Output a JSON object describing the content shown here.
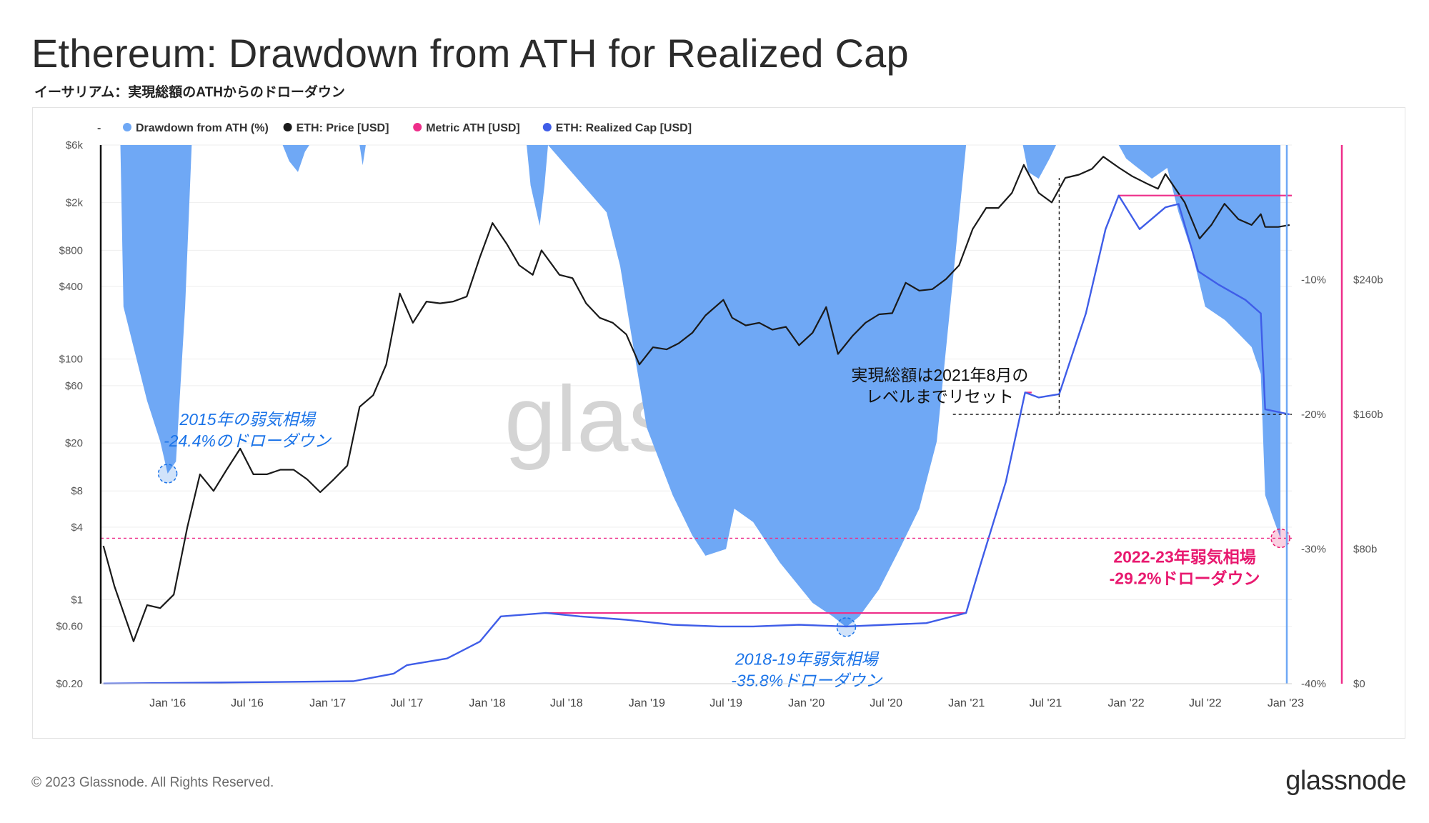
{
  "page": {
    "title": "Ethereum: Drawdown from ATH for Realized Cap",
    "subtitle": "イーサリアム：実現総額のATHからのドローダウン",
    "footer": "© 2023 Glassnode. All Rights Reserved.",
    "brand": "glassnode",
    "watermark": "glassnode"
  },
  "colors": {
    "drawdown": "#6fa8f5",
    "price": "#1a1a1a",
    "metric_ath": "#ee2e8a",
    "realized_cap": "#3f5de8",
    "annotation_blue": "#1a73e8",
    "annotation_pink": "#e8196f",
    "grid": "#eeeeee"
  },
  "chart_data": {
    "type": "area",
    "legend_position": "top-left",
    "legend": [
      {
        "label": "-",
        "color": "#555555",
        "marker": "dash"
      },
      {
        "label": "Drawdown from ATH (%)",
        "color": "#6fa8f5",
        "marker": "dot"
      },
      {
        "label": "ETH: Price [USD]",
        "color": "#1a1a1a",
        "marker": "dot"
      },
      {
        "label": "Metric ATH [USD]",
        "color": "#ee2e8a",
        "marker": "dot"
      },
      {
        "label": "ETH: Realized Cap [USD]",
        "color": "#3f5de8",
        "marker": "dot"
      }
    ],
    "x_axis": {
      "start": "2015-08-01",
      "end": "2023-01-15",
      "ticks": [
        {
          "date": "2016-01-01",
          "label": "Jan '16"
        },
        {
          "date": "2016-07-01",
          "label": "Jul '16"
        },
        {
          "date": "2017-01-01",
          "label": "Jan '17"
        },
        {
          "date": "2017-07-01",
          "label": "Jul '17"
        },
        {
          "date": "2018-01-01",
          "label": "Jan '18"
        },
        {
          "date": "2018-07-01",
          "label": "Jul '18"
        },
        {
          "date": "2019-01-01",
          "label": "Jan '19"
        },
        {
          "date": "2019-07-01",
          "label": "Jul '19"
        },
        {
          "date": "2020-01-01",
          "label": "Jan '20"
        },
        {
          "date": "2020-07-01",
          "label": "Jul '20"
        },
        {
          "date": "2021-01-01",
          "label": "Jan '21"
        },
        {
          "date": "2021-07-01",
          "label": "Jul '21"
        },
        {
          "date": "2022-01-01",
          "label": "Jan '22"
        },
        {
          "date": "2022-07-01",
          "label": "Jul '22"
        },
        {
          "date": "2023-01-01",
          "label": "Jan '23"
        }
      ]
    },
    "price_axis": {
      "scale": "log",
      "range": [
        0.2,
        6000
      ],
      "ticks": [
        {
          "value": 6000,
          "label": "$6k"
        },
        {
          "value": 2000,
          "label": "$2k"
        },
        {
          "value": 800,
          "label": "$800"
        },
        {
          "value": 400,
          "label": "$400"
        },
        {
          "value": 100,
          "label": "$100"
        },
        {
          "value": 60,
          "label": "$60"
        },
        {
          "value": 20,
          "label": "$20"
        },
        {
          "value": 8,
          "label": "$8"
        },
        {
          "value": 4,
          "label": "$4"
        },
        {
          "value": 1,
          "label": "$1"
        },
        {
          "value": 0.6,
          "label": "$0.60"
        },
        {
          "value": 0.2,
          "label": "$0.20"
        }
      ]
    },
    "drawdown_axis": {
      "range": [
        -40,
        0
      ],
      "ticks": [
        {
          "value": -10,
          "label": "-10%"
        },
        {
          "value": -20,
          "label": "-20%"
        },
        {
          "value": -30,
          "label": "-30%"
        },
        {
          "value": -40,
          "label": "-40%"
        }
      ]
    },
    "realized_cap_axis": {
      "range_billion": [
        0,
        320
      ],
      "ticks": [
        {
          "value": 240,
          "label": "$240b"
        },
        {
          "value": 160,
          "label": "$160b"
        },
        {
          "value": 80,
          "label": "$80b"
        },
        {
          "value": 0,
          "label": "$0"
        }
      ]
    },
    "series": [
      {
        "name": "Drawdown from ATH (%)",
        "points": [
          [
            "2015-09-15",
            0
          ],
          [
            "2015-09-22",
            -12
          ],
          [
            "2015-10-15",
            -15
          ],
          [
            "2015-11-15",
            -19
          ],
          [
            "2015-12-15",
            -22
          ],
          [
            "2016-01-01",
            -24.4
          ],
          [
            "2016-01-20",
            -23.5
          ],
          [
            "2016-02-10",
            -12
          ],
          [
            "2016-02-25",
            0
          ],
          [
            "2016-09-20",
            0
          ],
          [
            "2016-10-05",
            -1.2
          ],
          [
            "2016-10-25",
            -2
          ],
          [
            "2016-11-10",
            -0.5
          ],
          [
            "2016-11-20",
            0
          ],
          [
            "2017-03-15",
            0
          ],
          [
            "2017-03-22",
            -1.5
          ],
          [
            "2017-03-29",
            0
          ],
          [
            "2018-04-01",
            0
          ],
          [
            "2018-04-10",
            -3
          ],
          [
            "2018-05-01",
            -6
          ],
          [
            "2018-05-12",
            -3
          ],
          [
            "2018-05-20",
            0
          ],
          [
            "2018-10-01",
            -5
          ],
          [
            "2018-11-01",
            -9
          ],
          [
            "2018-12-01",
            -15
          ],
          [
            "2019-01-01",
            -21
          ],
          [
            "2019-03-01",
            -26
          ],
          [
            "2019-04-15",
            -29
          ],
          [
            "2019-05-15",
            -30.5
          ],
          [
            "2019-07-01",
            -30
          ],
          [
            "2019-07-20",
            -27
          ],
          [
            "2019-09-01",
            -28
          ],
          [
            "2019-11-01",
            -31
          ],
          [
            "2020-01-15",
            -34
          ],
          [
            "2020-03-01",
            -35
          ],
          [
            "2020-04-01",
            -35.8
          ],
          [
            "2020-05-01",
            -35
          ],
          [
            "2020-06-15",
            -33
          ],
          [
            "2020-08-01",
            -30
          ],
          [
            "2020-09-15",
            -27
          ],
          [
            "2020-10-25",
            -22
          ],
          [
            "2020-12-01",
            -10
          ],
          [
            "2020-12-31",
            0
          ],
          [
            "2021-05-10",
            0
          ],
          [
            "2021-05-22",
            -2
          ],
          [
            "2021-06-15",
            -2.5
          ],
          [
            "2021-07-10",
            -1
          ],
          [
            "2021-07-25",
            0
          ],
          [
            "2021-12-15",
            0
          ],
          [
            "2022-01-01",
            -1
          ],
          [
            "2022-01-20",
            -1.5
          ],
          [
            "2022-03-01",
            -2.5
          ],
          [
            "2022-04-05",
            -1.7
          ],
          [
            "2022-05-01",
            -5
          ],
          [
            "2022-06-01",
            -8
          ],
          [
            "2022-07-01",
            -12
          ],
          [
            "2022-08-15",
            -13
          ],
          [
            "2022-09-15",
            -14
          ],
          [
            "2022-10-15",
            -15
          ],
          [
            "2022-11-05",
            -17
          ],
          [
            "2022-11-15",
            -26
          ],
          [
            "2022-12-01",
            -27.5
          ],
          [
            "2022-12-20",
            -29.2
          ]
        ]
      },
      {
        "name": "ETH: Price [USD]",
        "points": [
          [
            "2015-08-07",
            2.8
          ],
          [
            "2015-09-01",
            1.3
          ],
          [
            "2015-10-15",
            0.45
          ],
          [
            "2015-11-15",
            0.9
          ],
          [
            "2015-12-15",
            0.85
          ],
          [
            "2016-01-15",
            1.1
          ],
          [
            "2016-02-15",
            4
          ],
          [
            "2016-03-15",
            11
          ],
          [
            "2016-04-15",
            8
          ],
          [
            "2016-05-15",
            12
          ],
          [
            "2016-06-15",
            18
          ],
          [
            "2016-07-15",
            11
          ],
          [
            "2016-08-15",
            11
          ],
          [
            "2016-09-15",
            12
          ],
          [
            "2016-10-15",
            12
          ],
          [
            "2016-11-15",
            10
          ],
          [
            "2016-12-15",
            7.8
          ],
          [
            "2017-01-15",
            10
          ],
          [
            "2017-02-15",
            13
          ],
          [
            "2017-03-15",
            40
          ],
          [
            "2017-04-15",
            50
          ],
          [
            "2017-05-15",
            90
          ],
          [
            "2017-06-15",
            350
          ],
          [
            "2017-07-15",
            200
          ],
          [
            "2017-08-15",
            300
          ],
          [
            "2017-09-15",
            290
          ],
          [
            "2017-10-15",
            300
          ],
          [
            "2017-11-15",
            330
          ],
          [
            "2017-12-15",
            700
          ],
          [
            "2018-01-13",
            1350
          ],
          [
            "2018-02-15",
            900
          ],
          [
            "2018-03-15",
            600
          ],
          [
            "2018-04-15",
            500
          ],
          [
            "2018-05-05",
            800
          ],
          [
            "2018-06-15",
            500
          ],
          [
            "2018-07-15",
            470
          ],
          [
            "2018-08-15",
            290
          ],
          [
            "2018-09-15",
            220
          ],
          [
            "2018-10-15",
            200
          ],
          [
            "2018-11-15",
            160
          ],
          [
            "2018-12-15",
            90
          ],
          [
            "2019-01-15",
            125
          ],
          [
            "2019-02-15",
            120
          ],
          [
            "2019-03-15",
            135
          ],
          [
            "2019-04-15",
            165
          ],
          [
            "2019-05-15",
            230
          ],
          [
            "2019-06-25",
            310
          ],
          [
            "2019-07-15",
            220
          ],
          [
            "2019-08-15",
            190
          ],
          [
            "2019-09-15",
            200
          ],
          [
            "2019-10-15",
            175
          ],
          [
            "2019-11-15",
            185
          ],
          [
            "2019-12-15",
            130
          ],
          [
            "2020-01-15",
            165
          ],
          [
            "2020-02-15",
            270
          ],
          [
            "2020-03-13",
            110
          ],
          [
            "2020-04-15",
            155
          ],
          [
            "2020-05-15",
            200
          ],
          [
            "2020-06-15",
            235
          ],
          [
            "2020-07-15",
            240
          ],
          [
            "2020-08-15",
            430
          ],
          [
            "2020-09-15",
            370
          ],
          [
            "2020-10-15",
            380
          ],
          [
            "2020-11-15",
            460
          ],
          [
            "2020-12-15",
            600
          ],
          [
            "2021-01-15",
            1200
          ],
          [
            "2021-02-15",
            1800
          ],
          [
            "2021-03-15",
            1800
          ],
          [
            "2021-04-15",
            2400
          ],
          [
            "2021-05-12",
            4100
          ],
          [
            "2021-06-15",
            2400
          ],
          [
            "2021-07-15",
            2000
          ],
          [
            "2021-08-15",
            3200
          ],
          [
            "2021-09-15",
            3400
          ],
          [
            "2021-10-15",
            3800
          ],
          [
            "2021-11-10",
            4800
          ],
          [
            "2021-12-15",
            3900
          ],
          [
            "2022-01-15",
            3300
          ],
          [
            "2022-02-15",
            2900
          ],
          [
            "2022-03-15",
            2600
          ],
          [
            "2022-04-01",
            3450
          ],
          [
            "2022-05-15",
            2000
          ],
          [
            "2022-06-18",
            1000
          ],
          [
            "2022-07-15",
            1300
          ],
          [
            "2022-08-14",
            1950
          ],
          [
            "2022-09-15",
            1450
          ],
          [
            "2022-10-15",
            1300
          ],
          [
            "2022-11-05",
            1600
          ],
          [
            "2022-11-15",
            1250
          ],
          [
            "2022-12-15",
            1250
          ],
          [
            "2023-01-10",
            1300
          ]
        ]
      },
      {
        "name": "Metric ATH [USD]",
        "points": [
          [
            "2018-05-15",
            42
          ],
          [
            "2020-12-31",
            42
          ],
          [
            "2021-05-15",
            173
          ],
          [
            "2021-05-30",
            173
          ],
          [
            "2021-12-15",
            290
          ],
          [
            "2023-01-15",
            290
          ]
        ]
      },
      {
        "name": "ETH: Realized Cap [USD]",
        "points": [
          [
            "2015-08-07",
            0.1
          ],
          [
            "2016-06-15",
            0.8
          ],
          [
            "2017-03-01",
            1.5
          ],
          [
            "2017-06-01",
            6
          ],
          [
            "2017-07-01",
            11
          ],
          [
            "2017-10-01",
            15
          ],
          [
            "2017-12-15",
            25
          ],
          [
            "2018-02-01",
            40
          ],
          [
            "2018-05-15",
            42
          ],
          [
            "2018-08-01",
            40
          ],
          [
            "2018-11-15",
            38
          ],
          [
            "2019-03-01",
            35
          ],
          [
            "2019-06-15",
            34
          ],
          [
            "2019-09-01",
            34
          ],
          [
            "2019-12-15",
            35
          ],
          [
            "2020-04-01",
            34
          ],
          [
            "2020-07-01",
            35
          ],
          [
            "2020-10-01",
            36
          ],
          [
            "2020-12-31",
            42
          ],
          [
            "2021-02-01",
            70
          ],
          [
            "2021-04-01",
            120
          ],
          [
            "2021-05-15",
            173
          ],
          [
            "2021-06-15",
            170
          ],
          [
            "2021-08-01",
            172
          ],
          [
            "2021-10-01",
            220
          ],
          [
            "2021-11-15",
            270
          ],
          [
            "2021-12-15",
            290
          ],
          [
            "2022-02-01",
            270
          ],
          [
            "2022-04-01",
            283
          ],
          [
            "2022-05-01",
            285
          ],
          [
            "2022-06-15",
            245
          ],
          [
            "2022-08-01",
            237
          ],
          [
            "2022-10-01",
            228
          ],
          [
            "2022-11-05",
            220
          ],
          [
            "2022-11-15",
            163
          ],
          [
            "2023-01-10",
            160
          ]
        ]
      }
    ],
    "reference_lines": [
      {
        "type": "horizontal",
        "axis": "drawdown",
        "value": -29.2,
        "color": "#ee2e8a",
        "style": "dashed"
      },
      {
        "type": "horizontal",
        "axis": "realized_cap",
        "value": 160,
        "from_date": "2020-12-01",
        "color": "#1a1a1a",
        "style": "dashed"
      },
      {
        "type": "vertical",
        "date": "2021-08-01",
        "from_billion": 160,
        "to_price": 3200,
        "color": "#1a1a1a",
        "style": "dashed"
      }
    ],
    "markers": [
      {
        "date": "2016-01-01",
        "drawdown": -24.4,
        "color": "#1a73e8"
      },
      {
        "date": "2020-04-01",
        "drawdown": -35.8,
        "color": "#1a73e8"
      },
      {
        "date": "2022-12-20",
        "drawdown": -29.2,
        "color": "#e8196f"
      }
    ],
    "annotations": [
      {
        "date": "2016-07-01",
        "drawdown": -20.8,
        "lines": [
          "2015年の弱気相場",
          "-24.4%のドローダウン"
        ],
        "color": "#1a73e8",
        "italic": true,
        "bold": false
      },
      {
        "date": "2020-01-01",
        "drawdown": -38.6,
        "lines": [
          "2018-19年弱気相場",
          "-35.8%ドローダウン"
        ],
        "color": "#1a73e8",
        "italic": true,
        "bold": false
      },
      {
        "date": "2020-11-01",
        "drawdown": -17.5,
        "lines": [
          "実現総額は2021年8月の",
          "レベルまでリセット"
        ],
        "color": "#111111",
        "italic": false,
        "bold": false
      },
      {
        "date": "2022-05-15",
        "drawdown": -31.0,
        "lines": [
          "2022-23年弱気相場",
          "-29.2%ドローダウン"
        ],
        "color": "#e8196f",
        "italic": false,
        "bold": true
      }
    ]
  }
}
